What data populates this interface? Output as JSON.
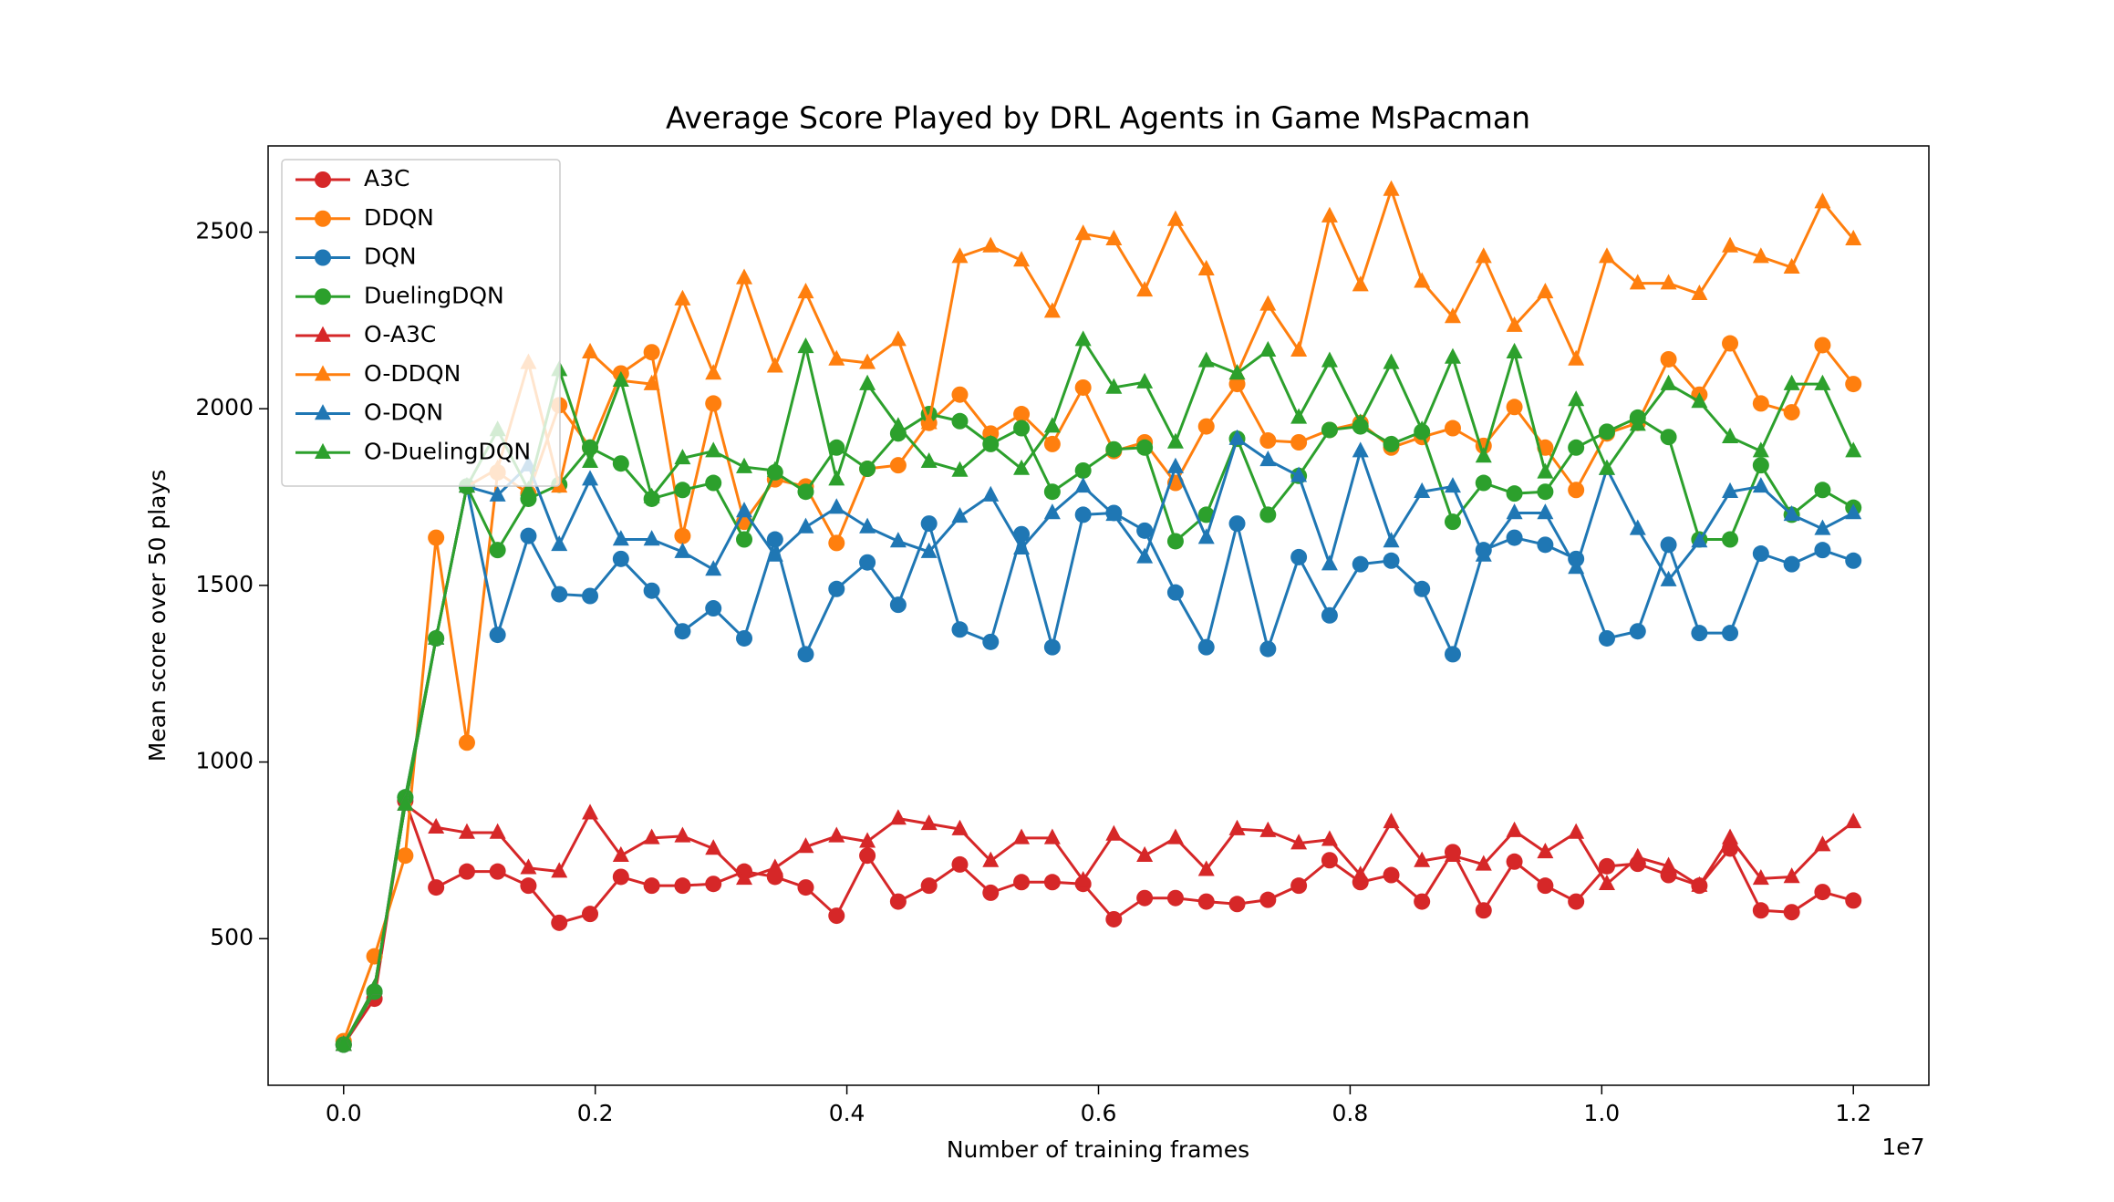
{
  "chart_data": {
    "type": "line",
    "title": "Average Score Played by DRL Agents in Game MsPacman",
    "x_label": "Number of training frames",
    "y_label": "Mean score over 50 plays",
    "x_offset_label": "1e7",
    "x": [
      0,
      0.0245,
      0.049,
      0.0735,
      0.098,
      0.1224,
      0.1469,
      0.1714,
      0.1959,
      0.2204,
      0.2449,
      0.2694,
      0.2939,
      0.3184,
      0.3429,
      0.3673,
      0.3918,
      0.4163,
      0.4408,
      0.4653,
      0.4898,
      0.5143,
      0.5388,
      0.5633,
      0.5878,
      0.6122,
      0.6367,
      0.6612,
      0.6857,
      0.7102,
      0.7347,
      0.7592,
      0.7837,
      0.8082,
      0.8327,
      0.8571,
      0.8816,
      0.9061,
      0.9306,
      0.9551,
      0.9796,
      1.0041,
      1.0286,
      1.0531,
      1.0776,
      1.102,
      1.1265,
      1.151,
      1.1755,
      1.2
    ],
    "xlim": [
      -0.06,
      1.26
    ],
    "ylim": [
      85,
      2744
    ],
    "xticks": [
      {
        "value": 0,
        "label": "0.0"
      },
      0.2,
      0.4,
      0.6,
      0.8,
      {
        "value": 1,
        "label": "1.0"
      },
      1.2
    ],
    "yticks": [
      500,
      1000,
      1500,
      2000,
      2500
    ],
    "grid": false,
    "legend": "upper left",
    "series": [
      {
        "name": "A3C",
        "color": "#d62728",
        "marker": "circle",
        "values": [
          200,
          330,
          890,
          645,
          690,
          690,
          650,
          545,
          570,
          675,
          650,
          650,
          655,
          690,
          675,
          645,
          565,
          735,
          605,
          650,
          710,
          630,
          660,
          660,
          655,
          555,
          615,
          615,
          605,
          598,
          610,
          650,
          722,
          660,
          680,
          605,
          745,
          580,
          718,
          650,
          605,
          705,
          712,
          680,
          650,
          755,
          580,
          575,
          632,
          608
        ]
      },
      {
        "name": "DDQN",
        "color": "#ff7f0e",
        "marker": "circle",
        "values": [
          210,
          450,
          735,
          1635,
          1055,
          1820,
          1760,
          2010,
          1890,
          2100,
          2160,
          1640,
          2015,
          1680,
          1800,
          1780,
          1620,
          1830,
          1840,
          1960,
          2040,
          1930,
          1985,
          1900,
          2060,
          1880,
          1905,
          1790,
          1950,
          2070,
          1910,
          1905,
          1940,
          1960,
          1890,
          1920,
          1945,
          1895,
          2005,
          1890,
          1770,
          1930,
          1960,
          2140,
          2040,
          2185,
          2015,
          1990,
          2180,
          2070
        ]
      },
      {
        "name": "DQN",
        "color": "#1f77b4",
        "marker": "circle",
        "values": [
          200,
          350,
          900,
          1350,
          1780,
          1360,
          1640,
          1475,
          1470,
          1575,
          1485,
          1370,
          1435,
          1350,
          1630,
          1305,
          1490,
          1565,
          1445,
          1675,
          1375,
          1340,
          1645,
          1325,
          1700,
          1705,
          1655,
          1480,
          1325,
          1675,
          1320,
          1580,
          1415,
          1560,
          1570,
          1490,
          1305,
          1600,
          1635,
          1615,
          1575,
          1350,
          1370,
          1615,
          1365,
          1365,
          1590,
          1560,
          1600,
          1570
        ]
      },
      {
        "name": "DuelingDQN",
        "color": "#2ca02c",
        "marker": "circle",
        "values": [
          200,
          350,
          900,
          1350,
          1780,
          1600,
          1745,
          1785,
          1890,
          1845,
          1745,
          1770,
          1790,
          1630,
          1820,
          1765,
          1890,
          1830,
          1930,
          1985,
          1965,
          1900,
          1945,
          1765,
          1825,
          1885,
          1890,
          1625,
          1700,
          1915,
          1700,
          1810,
          1940,
          1950,
          1900,
          1935,
          1680,
          1790,
          1760,
          1765,
          1890,
          1935,
          1975,
          1920,
          1630,
          1630,
          1840,
          1700,
          1770,
          1720
        ]
      },
      {
        "name": "O-A3C",
        "color": "#d62728",
        "marker": "triangle",
        "values": [
          200,
          360,
          880,
          815,
          800,
          800,
          700,
          690,
          855,
          735,
          785,
          790,
          755,
          670,
          700,
          760,
          790,
          775,
          840,
          825,
          810,
          720,
          785,
          785,
          665,
          795,
          735,
          785,
          695,
          810,
          805,
          770,
          780,
          680,
          830,
          720,
          735,
          710,
          805,
          745,
          800,
          655,
          730,
          705,
          650,
          785,
          670,
          675,
          765,
          830
        ]
      },
      {
        "name": "O-DDQN",
        "color": "#ff7f0e",
        "marker": "triangle",
        "values": [
          200,
          360,
          880,
          1350,
          1780,
          1830,
          2130,
          1780,
          2160,
          2080,
          2070,
          2310,
          2100,
          2370,
          2120,
          2330,
          2140,
          2130,
          2195,
          1960,
          2430,
          2460,
          2420,
          2275,
          2495,
          2480,
          2335,
          2535,
          2395,
          2100,
          2295,
          2165,
          2545,
          2350,
          2620,
          2360,
          2260,
          2430,
          2235,
          2330,
          2140,
          2430,
          2355,
          2355,
          2325,
          2460,
          2430,
          2400,
          2585,
          2480
        ]
      },
      {
        "name": "O-DQN",
        "color": "#1f77b4",
        "marker": "triangle",
        "values": [
          200,
          360,
          880,
          1350,
          1780,
          1755,
          1840,
          1615,
          1800,
          1630,
          1630,
          1595,
          1545,
          1710,
          1585,
          1665,
          1720,
          1665,
          1625,
          1595,
          1695,
          1755,
          1605,
          1705,
          1780,
          1700,
          1580,
          1835,
          1635,
          1915,
          1855,
          1810,
          1560,
          1880,
          1625,
          1765,
          1780,
          1585,
          1705,
          1705,
          1550,
          1830,
          1660,
          1515,
          1625,
          1765,
          1780,
          1700,
          1660,
          1705
        ]
      },
      {
        "name": "O-DuelingDQN",
        "color": "#2ca02c",
        "marker": "triangle",
        "values": [
          200,
          360,
          880,
          1350,
          1780,
          1940,
          1770,
          2110,
          1850,
          2080,
          1750,
          1860,
          1880,
          1835,
          1825,
          2175,
          1800,
          2070,
          1950,
          1850,
          1825,
          1900,
          1830,
          1950,
          2195,
          2060,
          2075,
          1905,
          2135,
          2100,
          2165,
          1975,
          2135,
          1960,
          2130,
          1940,
          2145,
          1865,
          2160,
          1820,
          2025,
          1830,
          1955,
          2070,
          2020,
          1920,
          1880,
          2070,
          2070,
          1880
        ]
      }
    ]
  }
}
